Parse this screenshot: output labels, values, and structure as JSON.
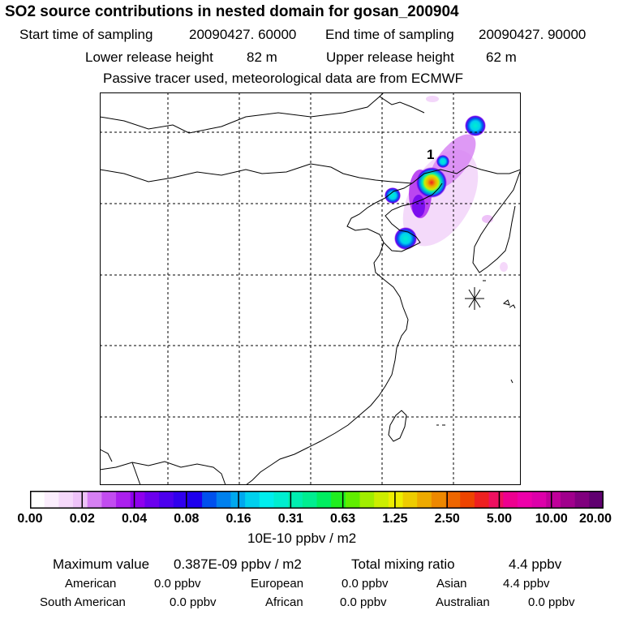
{
  "header": {
    "title": "SO2 source contributions in nested domain for gosan_200904",
    "start_label": "Start time of sampling",
    "start_value": "20090427. 60000",
    "end_label": "End time of sampling",
    "end_value": "20090427. 90000",
    "lower_label": "Lower release height",
    "lower_value": "82 m",
    "upper_label": "Upper release height",
    "upper_value": "62 m",
    "note": "Passive tracer used, meteorological data are from ECMWF"
  },
  "map": {
    "source_marker_label": "1",
    "receptor_marker": "star-icon"
  },
  "colorbar": {
    "unit": "10E-10 ppbv / m2",
    "ticks": [
      "0.00",
      "0.02",
      "0.04",
      "0.08",
      "0.16",
      "0.31",
      "0.63",
      "1.25",
      "2.50",
      "5.00",
      "10.00",
      "20.00"
    ],
    "colors": [
      "#ffffff",
      "#fbeefd",
      "#f5d8fa",
      "#eec2f8",
      "#d680f3",
      "#c24cf0",
      "#ab20ee",
      "#8f00ee",
      "#6b00ee",
      "#4c00ee",
      "#3000ee",
      "#1d00ee",
      "#0050ee",
      "#0080ee",
      "#00a8ee",
      "#00d0ee",
      "#00eeee",
      "#00eed0",
      "#00eeb0",
      "#00ee90",
      "#00ee60",
      "#20ee20",
      "#60ee00",
      "#a0ee00",
      "#ccee00",
      "#eeee00",
      "#eecc00",
      "#eeaa00",
      "#ee8800",
      "#ee6600",
      "#ee4400",
      "#ee2020",
      "#ee1060",
      "#ee0090",
      "#ee00aa",
      "#dd00aa",
      "#c0009a",
      "#a0008c",
      "#80007e",
      "#600070"
    ]
  },
  "footer": {
    "max_label": "Maximum value",
    "max_value": "0.387E-09 ppbv / m2",
    "total_label": "Total mixing ratio",
    "total_value": "4.4 ppbv",
    "regions": [
      {
        "name": "American",
        "value": "0.0 ppbv"
      },
      {
        "name": "European",
        "value": "0.0 ppbv"
      },
      {
        "name": "Asian",
        "value": "4.4 ppbv"
      },
      {
        "name": "South American",
        "value": "0.0 ppbv"
      },
      {
        "name": "African",
        "value": "0.0 ppbv"
      },
      {
        "name": "Australian",
        "value": "0.0 ppbv"
      }
    ]
  }
}
